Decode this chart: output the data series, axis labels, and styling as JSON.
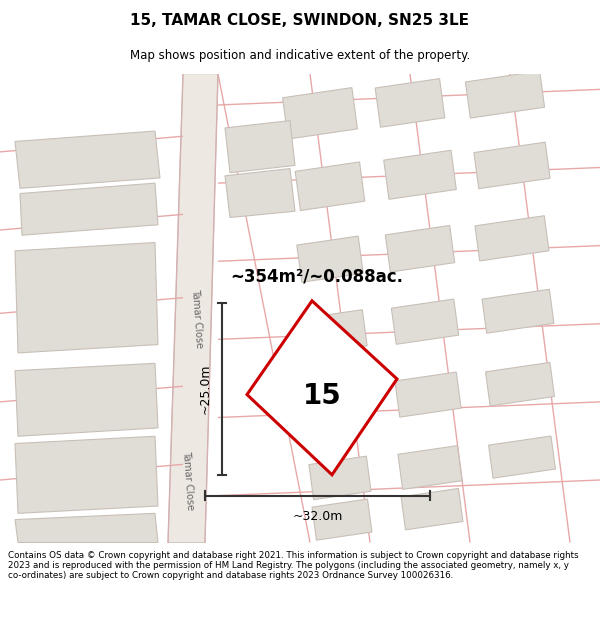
{
  "title": "15, TAMAR CLOSE, SWINDON, SN25 3LE",
  "subtitle": "Map shows position and indicative extent of the property.",
  "footer": "Contains OS data © Crown copyright and database right 2021. This information is subject to Crown copyright and database rights 2023 and is reproduced with the permission of HM Land Registry. The polygons (including the associated geometry, namely x, y co-ordinates) are subject to Crown copyright and database rights 2023 Ordnance Survey 100026316.",
  "area_text": "~354m²/~0.088ac.",
  "number_text": "15",
  "width_label": "~32.0m",
  "height_label": "~25.0m",
  "road_name_1": "Tamar Close",
  "road_name_2": "Tamar Close",
  "map_bg": "#f5f3f0",
  "building_fill": "#e0dcd6",
  "building_edge": "#c8c0b8",
  "road_line_color": "#e8a8a8",
  "road_fill": "#ede8e2",
  "road_edge_color": "#d4c8c0",
  "subject_color": "#cc0000",
  "dim_color": "#333333",
  "white_bg": "#ffffff"
}
